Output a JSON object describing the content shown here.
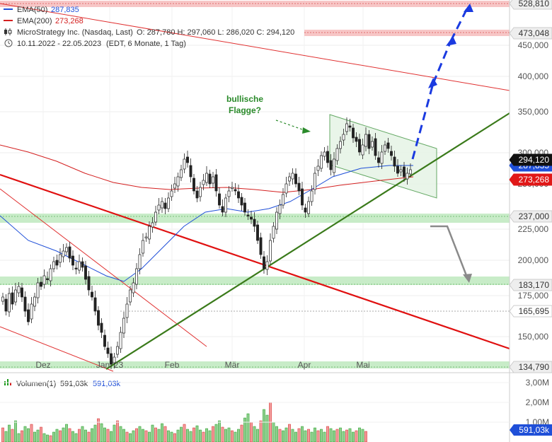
{
  "legend": {
    "ema50": {
      "label": "EMA(50)",
      "value": "287,835",
      "color": "#1f4fd8"
    },
    "ema200": {
      "label": "EMA(200)",
      "value": "273,268",
      "color": "#d42020"
    },
    "instrument": "MicroStrategy Inc. (Nasdaq, Last)",
    "ohlc": "O: 287,780  H: 297,060  L: 286,020  C: 294,120",
    "range": "10.11.2022 - 22.05.2023",
    "range_note": "(EDT, 6 Monate, 1 Tag)"
  },
  "annotation": {
    "line1": "bullische",
    "line2": "Flagge?"
  },
  "price_axis_ticks": [
    "450,000",
    "400,000",
    "350,000",
    "300,000",
    "250,000",
    "225,000",
    "200,000",
    "175,000",
    "150,000"
  ],
  "price_tags": [
    {
      "text": "528,810",
      "kind": "level"
    },
    {
      "text": "473,048",
      "kind": "level"
    },
    {
      "text": "294,120",
      "kind": "last"
    },
    {
      "text": "287,835",
      "kind": "ema50"
    },
    {
      "text": "273,268",
      "kind": "ema200"
    },
    {
      "text": "237,000",
      "kind": "level"
    },
    {
      "text": "183,170",
      "kind": "level"
    },
    {
      "text": "165,695",
      "kind": "plain"
    },
    {
      "text": "134,790",
      "kind": "level"
    }
  ],
  "time_axis": [
    "Dez",
    "Jan '23",
    "Feb",
    "Mär",
    "Apr",
    "Mai"
  ],
  "volume": {
    "label": "Volumen(1)",
    "value1": "591,03k",
    "value2": "591,03k",
    "ticks": [
      "3,00M",
      "2,00M",
      "1,00M"
    ],
    "last_tag": "591,03k"
  },
  "colors": {
    "up": "#1a9a1a",
    "down": "#d42020",
    "ema50": "#1f4fd8",
    "ema200": "#d42020",
    "trend_green": "#3a7a1a",
    "support_zone": "#c8ecc8",
    "resistance_zone": "#f7c6c6",
    "arrow_blue": "#1a3ae0"
  },
  "chart_data": {
    "type": "candlestick",
    "price_range": [
      130000,
      535000
    ],
    "levels": [
      528810,
      473048,
      237000,
      183170,
      165695,
      134790
    ],
    "last_close": 294120,
    "ema50": 287835,
    "ema200": 273268,
    "approx_closes": [
      {
        "date": "Nov",
        "close": 185000
      },
      {
        "date": "Dez",
        "close": 205000
      },
      {
        "date": "Jan '23",
        "close": 140000
      },
      {
        "date": "Feb",
        "close": 290000
      },
      {
        "date": "Mär",
        "close": 195000
      },
      {
        "date": "Apr",
        "close": 320000
      },
      {
        "date": "Mai",
        "close": 294120
      }
    ]
  }
}
